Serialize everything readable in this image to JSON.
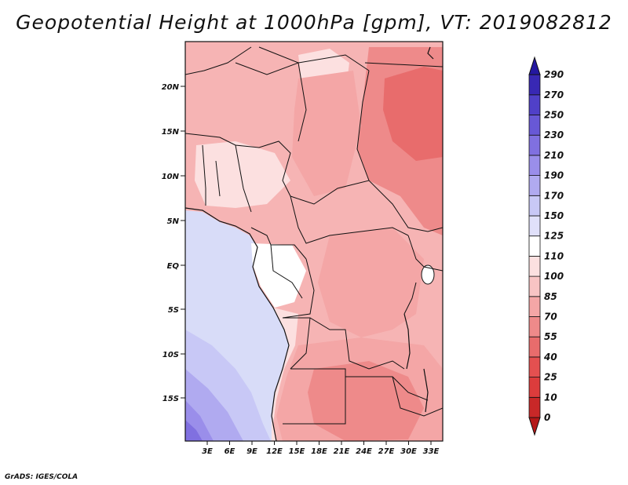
{
  "title": "Geopotential Height at 1000hPa [gpm], VT: 2019082812",
  "credit": "GrADS: IGES/COLA",
  "map": {
    "lat_labels": [
      "20N",
      "15N",
      "10N",
      "5N",
      "EQ",
      "5S",
      "10S",
      "15S"
    ],
    "lon_labels": [
      "3E",
      "6E",
      "9E",
      "12E",
      "15E",
      "18E",
      "21E",
      "24E",
      "27E",
      "30E",
      "33E"
    ],
    "ocean_color": "#d8dcf8",
    "land_base_color": "#f6b4b4"
  },
  "colorbar": {
    "levels": [
      "0",
      "10",
      "25",
      "40",
      "55",
      "70",
      "85",
      "100",
      "110",
      "125",
      "150",
      "170",
      "190",
      "210",
      "230",
      "250",
      "270",
      "290"
    ],
    "colors": [
      "#b41818",
      "#c82828",
      "#dc3c3c",
      "#e45050",
      "#e86c6c",
      "#ee8a8a",
      "#f4a6a6",
      "#f8c4c4",
      "#fce0e0",
      "#ffffff",
      "#e0e0fa",
      "#c8c8f6",
      "#b0aaf0",
      "#9a8eea",
      "#8070e0",
      "#6858d6",
      "#5040c8",
      "#3828b4",
      "#2418a0"
    ]
  }
}
